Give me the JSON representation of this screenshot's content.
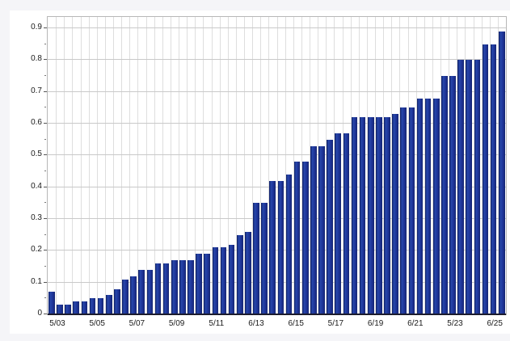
{
  "chart_data": {
    "type": "bar",
    "title": "",
    "xlabel": "",
    "ylabel": "",
    "x_tick_labels": [
      "5/03",
      "5/05",
      "5/07",
      "5/09",
      "5/11",
      "6/13",
      "6/15",
      "5/17",
      "6/19",
      "6/21",
      "5/23",
      "6/25"
    ],
    "y_tick_labels": [
      "0",
      "0.1",
      "0.2",
      "0.3",
      "0.4",
      "0.5",
      "0.6",
      "0.7",
      "0.8",
      "0.9"
    ],
    "ylim": [
      0,
      0.936
    ],
    "grid": "both",
    "legend": "none",
    "bar_color": "#1d3194",
    "plot_background": "#ffffff",
    "page_background": "#f5f5f8",
    "values": [
      0.07,
      0.03,
      0.03,
      0.04,
      0.04,
      0.05,
      0.05,
      0.06,
      0.08,
      0.11,
      0.12,
      0.14,
      0.14,
      0.16,
      0.16,
      0.17,
      0.17,
      0.17,
      0.19,
      0.19,
      0.21,
      0.21,
      0.22,
      0.25,
      0.26,
      0.35,
      0.35,
      0.42,
      0.42,
      0.44,
      0.48,
      0.48,
      0.53,
      0.53,
      0.55,
      0.57,
      0.57,
      0.62,
      0.62,
      0.62,
      0.62,
      0.62,
      0.63,
      0.65,
      0.65,
      0.68,
      0.68,
      0.68,
      0.75,
      0.75,
      0.8,
      0.8,
      0.8,
      0.85,
      0.85,
      0.89
    ]
  }
}
